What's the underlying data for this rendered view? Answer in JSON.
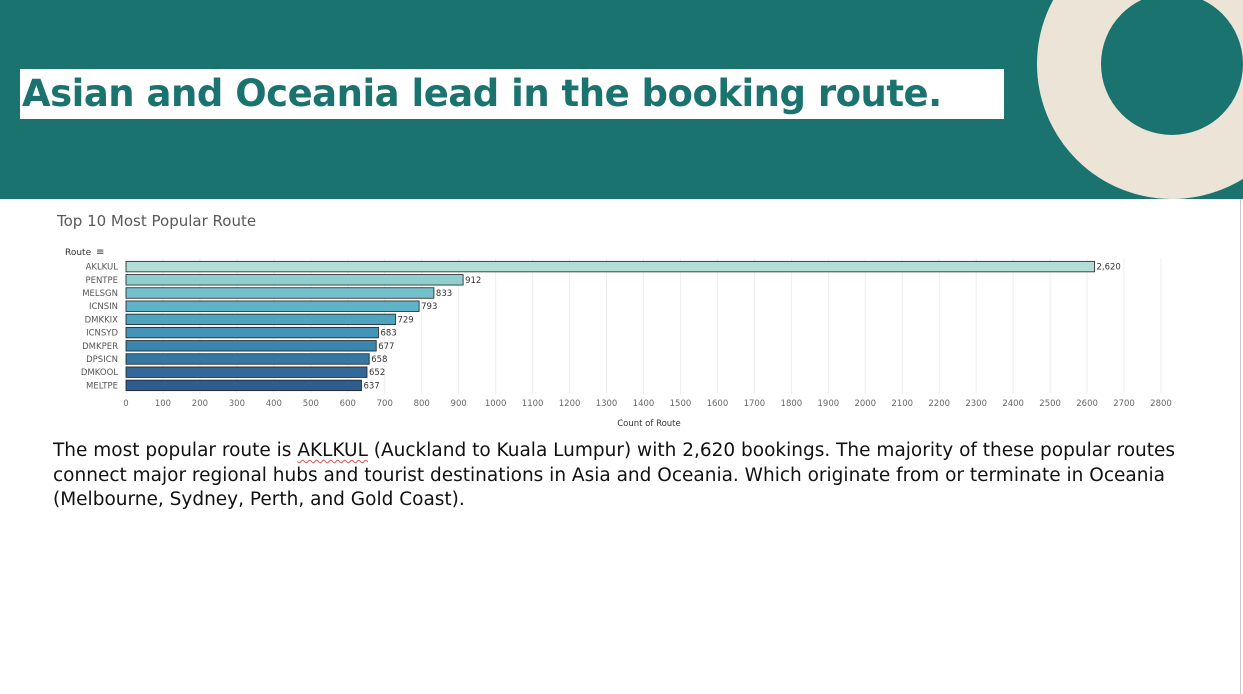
{
  "slide": {
    "title": "Asian and Oceania lead in the booking route."
  },
  "caption": {
    "before": "The most popular route is ",
    "highlight": "AKLKUL",
    "after": " (Auckland to Kuala Lumpur) with 2,620 bookings. The majority of these popular routes connect major regional hubs and tourist destinations in Asia and Oceania. Which originate from or terminate in Oceania (Melbourne, Sydney, Perth, and Gold Coast)."
  },
  "colors": {
    "header_bg": "#1a736f",
    "ring": "#ece4d6",
    "title_text": "#1a736f"
  },
  "chart_data": {
    "type": "bar",
    "orientation": "horizontal",
    "title": "Top 10 Most Popular Route",
    "ylabel": "Route",
    "xlabel": "Count of Route",
    "categories": [
      "AKLKUL",
      "PENTPE",
      "MELSGN",
      "ICNSIN",
      "DMKKIX",
      "ICNSYD",
      "DMKPER",
      "DPSICN",
      "DMKOOL",
      "MELTPE"
    ],
    "values": [
      2620,
      912,
      833,
      793,
      729,
      683,
      677,
      658,
      652,
      637
    ],
    "value_labels": [
      "2,620",
      "912",
      "833",
      "793",
      "729",
      "683",
      "677",
      "658",
      "652",
      "637"
    ],
    "xticks": [
      0,
      100,
      200,
      300,
      400,
      500,
      600,
      700,
      800,
      900,
      1000,
      1100,
      1200,
      1300,
      1400,
      1500,
      1600,
      1700,
      1800,
      1900,
      2000,
      2100,
      2200,
      2300,
      2400,
      2500,
      2600,
      2700,
      2800
    ],
    "xlim": [
      0,
      2800
    ],
    "grid": true,
    "bar_colors": [
      "#b4ddd7",
      "#8fd0cf",
      "#75c1cb",
      "#5fb3c7",
      "#4ea3bf",
      "#4294b8",
      "#3a85ae",
      "#3577a3",
      "#32699a",
      "#2f5c8f"
    ]
  }
}
